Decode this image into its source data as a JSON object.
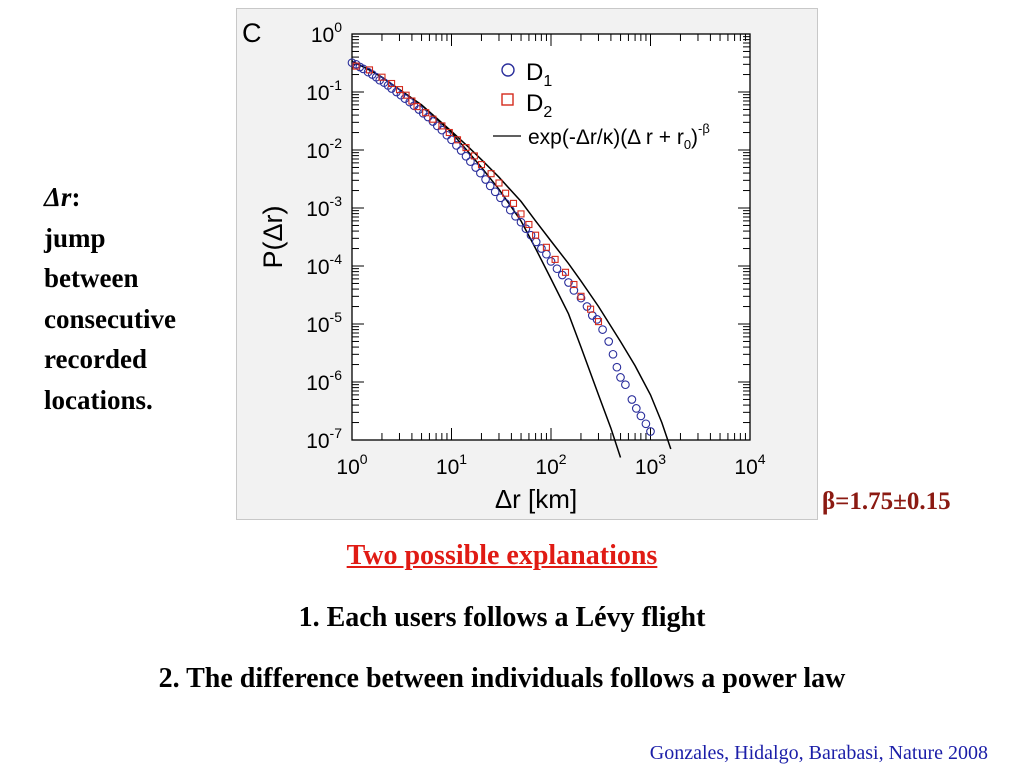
{
  "slide": {
    "side_label_term": "Δr",
    "side_label_colon": ":",
    "side_label_lines": [
      "jump",
      "between",
      "consecutive",
      "recorded",
      "locations."
    ],
    "beta_note": "β=1.75±0.15",
    "explanations_title": "Two possible explanations",
    "explanation_1": "1. Each users follows a Lévy flight",
    "explanation_2": "2. The difference between individuals follows a power law",
    "citation": "Gonzales, Hidalgo, Barabasi, Nature 2008",
    "colors": {
      "beta": "#8b1a12",
      "title": "#e01b14",
      "citation": "#1b1ea8"
    }
  },
  "chart_data": {
    "type": "scatter",
    "panel_label": "C",
    "xlabel": "Δr [km]",
    "ylabel": "P(Δr)",
    "xscale": "log",
    "yscale": "log",
    "xlim": [
      1,
      10000
    ],
    "ylim": [
      1e-07,
      1
    ],
    "x_tick_labels": [
      "10^0",
      "10^1",
      "10^2",
      "10^3",
      "10^4"
    ],
    "y_tick_labels": [
      "10^0",
      "10^-1",
      "10^-2",
      "10^-3",
      "10^-4",
      "10^-5",
      "10^-6",
      "10^-7"
    ],
    "grid": false,
    "legend_placement": "top-right",
    "legend": [
      {
        "marker": "circle",
        "text": "D",
        "sub": "1"
      },
      {
        "marker": "square",
        "text": "D",
        "sub": "2"
      },
      {
        "marker": "line",
        "text": "exp(-Δr/κ)(Δ r + r",
        "sub": "0",
        "text_after": ")",
        "sup": "-β"
      }
    ],
    "colors": {
      "D1": "#2b2f9c",
      "D2": "#d42a1c",
      "fit": "#000000",
      "panel_bg": "#f2f2f2"
    },
    "series": [
      {
        "name": "D1",
        "marker": "circle",
        "x": [
          1.0,
          1.1,
          1.2,
          1.3,
          1.45,
          1.6,
          1.75,
          1.9,
          2.1,
          2.3,
          2.5,
          2.8,
          3.1,
          3.4,
          3.8,
          4.2,
          4.7,
          5.2,
          5.8,
          6.5,
          7.2,
          8.0,
          9.0,
          10.0,
          11.2,
          12.5,
          14.0,
          15.5,
          17.5,
          19.5,
          22.0,
          24.5,
          27.5,
          31.0,
          35.0,
          39.0,
          44.0,
          50.0,
          56.0,
          63.0,
          71.0,
          80.0,
          90.0,
          100.0,
          115.0,
          130.0,
          150.0,
          170.0,
          200.0,
          230.0,
          260.0,
          290.0,
          330.0,
          380.0,
          420.0,
          460.0,
          500.0,
          560.0,
          650.0,
          720.0,
          800.0,
          900.0,
          1000.0
        ],
        "y": [
          0.32,
          0.3,
          0.27,
          0.25,
          0.22,
          0.2,
          0.18,
          0.16,
          0.145,
          0.13,
          0.115,
          0.1,
          0.088,
          0.077,
          0.067,
          0.058,
          0.05,
          0.043,
          0.037,
          0.031,
          0.026,
          0.022,
          0.018,
          0.015,
          0.012,
          0.0098,
          0.0078,
          0.0063,
          0.005,
          0.004,
          0.0031,
          0.0024,
          0.0019,
          0.0015,
          0.0012,
          0.00092,
          0.00072,
          0.00057,
          0.00044,
          0.00034,
          0.00026,
          0.0002,
          0.00016,
          0.00012,
          9e-05,
          7e-05,
          5.2e-05,
          3.8e-05,
          2.8e-05,
          2e-05,
          1.4e-05,
          1.2e-05,
          8e-06,
          5e-06,
          3e-06,
          1.8e-06,
          1.2e-06,
          9e-07,
          5e-07,
          3.5e-07,
          2.6e-07,
          1.9e-07,
          1.4e-07
        ]
      },
      {
        "name": "D2",
        "marker": "square",
        "x": [
          1.1,
          1.5,
          2.0,
          2.5,
          3.0,
          3.5,
          4.0,
          4.5,
          5.5,
          6.5,
          8.0,
          9.5,
          11.5,
          14.0,
          17.0,
          20.0,
          25.0,
          30.0,
          35.0,
          42.0,
          50.0,
          60.0,
          70.0,
          90.0,
          110.0,
          140.0,
          170.0,
          200.0,
          250.0,
          300.0
        ],
        "y": [
          0.28,
          0.24,
          0.18,
          0.14,
          0.11,
          0.088,
          0.07,
          0.056,
          0.044,
          0.034,
          0.026,
          0.02,
          0.015,
          0.011,
          0.0079,
          0.0056,
          0.0039,
          0.0027,
          0.0018,
          0.0012,
          0.00079,
          0.00052,
          0.00034,
          0.00021,
          0.00013,
          7.8e-05,
          4.8e-05,
          3e-05,
          1.8e-05,
          1.1e-05
        ]
      },
      {
        "name": "fit-1",
        "marker": "line",
        "x": [
          1.0,
          1.5,
          2.0,
          3.0,
          5.0,
          7.0,
          10.0,
          15.0,
          20.0,
          30.0,
          50.0,
          70.0,
          100.0,
          150.0,
          200.0,
          300.0,
          400.0,
          500.0
        ],
        "y": [
          0.34,
          0.24,
          0.18,
          0.11,
          0.06,
          0.035,
          0.02,
          0.009,
          0.005,
          0.0021,
          0.0006,
          0.0002,
          6e-05,
          1.5e-05,
          4e-06,
          6e-07,
          1.6e-07,
          5e-08
        ]
      },
      {
        "name": "fit-2",
        "marker": "line",
        "x": [
          1.0,
          1.5,
          2.0,
          3.0,
          5.0,
          7.0,
          10.0,
          15.0,
          20.0,
          30.0,
          50.0,
          70.0,
          100.0,
          150.0,
          200.0,
          300.0,
          500.0,
          700.0,
          1000.0,
          1300.0,
          1600.0
        ],
        "y": [
          0.34,
          0.24,
          0.18,
          0.11,
          0.06,
          0.036,
          0.021,
          0.011,
          0.0068,
          0.0034,
          0.0013,
          0.0006,
          0.00027,
          0.00011,
          5.5e-05,
          2e-05,
          5e-06,
          1.9e-06,
          6e-07,
          2e-07,
          7e-08
        ]
      }
    ]
  }
}
